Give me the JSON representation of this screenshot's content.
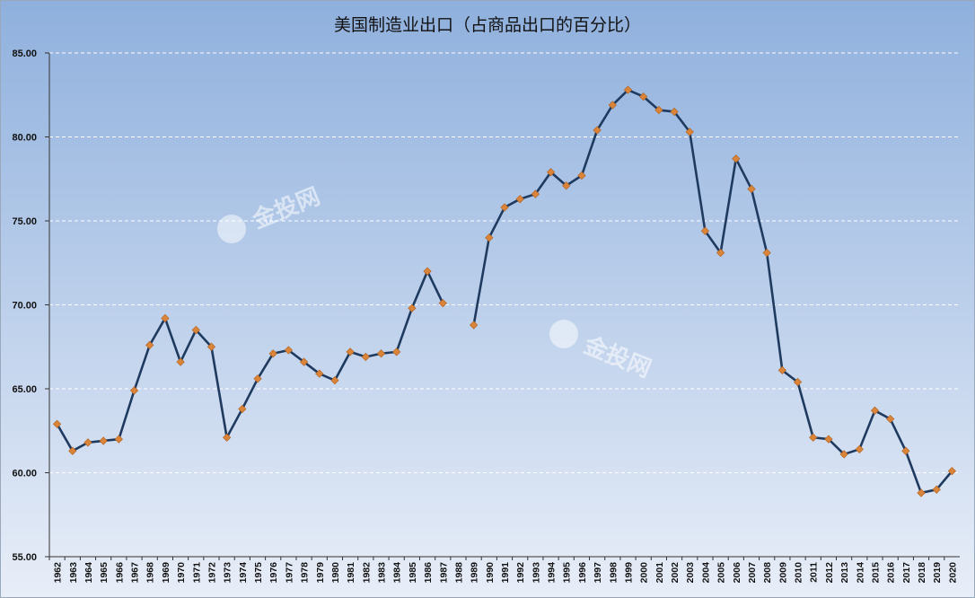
{
  "chart_data": {
    "type": "line",
    "title": "美国制造业出口（占商品出口的百分比）",
    "xlabel": "",
    "ylabel": "",
    "ylim": [
      55,
      85
    ],
    "yticks": [
      "55.00",
      "60.00",
      "65.00",
      "70.00",
      "75.00",
      "80.00",
      "85.00"
    ],
    "grid": "horizontal dashed",
    "legend": "none",
    "x": [
      "1962",
      "1963",
      "1964",
      "1965",
      "1966",
      "1967",
      "1968",
      "1969",
      "1970",
      "1971",
      "1972",
      "1973",
      "1974",
      "1975",
      "1976",
      "1977",
      "1978",
      "1979",
      "1980",
      "1981",
      "1982",
      "1983",
      "1984",
      "1985",
      "1986",
      "1987",
      "1988",
      "1989",
      "1990",
      "1991",
      "1992",
      "1993",
      "1994",
      "1995",
      "1996",
      "1997",
      "1998",
      "1999",
      "2000",
      "2001",
      "2002",
      "2003",
      "2004",
      "2005",
      "2006",
      "2007",
      "2008",
      "2009",
      "2010",
      "2011",
      "2012",
      "2013",
      "2014",
      "2015",
      "2016",
      "2017",
      "2018",
      "2019",
      "2020"
    ],
    "series": [
      {
        "values": [
          62.9,
          61.3,
          61.8,
          61.9,
          62.0,
          64.9,
          67.6,
          69.2,
          66.6,
          68.5,
          67.5,
          62.1,
          63.8,
          65.6,
          67.1,
          67.3,
          66.6,
          65.9,
          65.5,
          67.2,
          66.9,
          67.1,
          67.2,
          69.8,
          72.0,
          70.1,
          null,
          68.8,
          74.0,
          75.8,
          76.3,
          76.6,
          77.9,
          77.1,
          77.7,
          80.4,
          81.9,
          82.8,
          82.4,
          81.6,
          81.5,
          80.3,
          74.4,
          73.1,
          78.7,
          76.9,
          73.1,
          66.1,
          65.4,
          62.1,
          62.0,
          61.1,
          61.4,
          63.7,
          63.2,
          61.3,
          58.8,
          59.0,
          60.1
        ],
        "line_color": "#1f3a5f",
        "marker_color": "#d98438"
      }
    ],
    "colors": {
      "background_top": "#8fb0dd",
      "background_bottom": "#e8eef8",
      "gridline": "#ffffff"
    }
  },
  "watermarks": [
    {
      "text": "金投网"
    },
    {
      "text": "金投网"
    }
  ]
}
